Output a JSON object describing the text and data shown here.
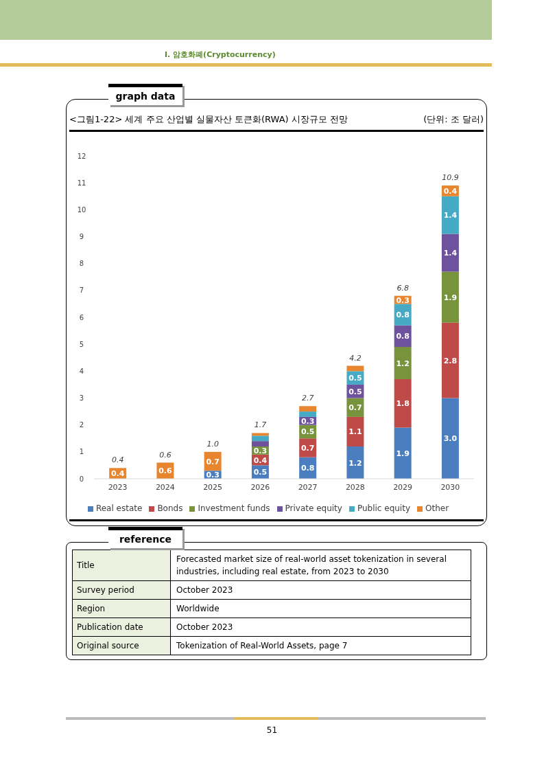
{
  "chart_data": {
    "type": "bar",
    "title": "<그림1-22> 세계 주요 산업별 실물자산 토큰화(RWA) 시장규모 전망",
    "subtitle": "(단위: 조 달러)",
    "categories": [
      "2023",
      "2024",
      "2025",
      "2026",
      "2027",
      "2028",
      "2029",
      "2030"
    ],
    "series": [
      {
        "name": "Real estate",
        "color": "#4a7ebf",
        "values": [
          null,
          null,
          0.3,
          0.5,
          0.8,
          1.2,
          1.9,
          3.0
        ],
        "value_labels": [
          null,
          null,
          "0.3",
          "0.5",
          "0.8",
          "1.2",
          "1.9",
          "3.0"
        ]
      },
      {
        "name": "Bonds",
        "color": "#be4b48",
        "values": [
          null,
          null,
          null,
          0.4,
          0.7,
          1.1,
          1.8,
          2.8
        ],
        "value_labels": [
          null,
          null,
          null,
          "0.4",
          "0.7",
          "1.1",
          "1.8",
          "2.8"
        ]
      },
      {
        "name": "Investment funds",
        "color": "#77933c",
        "values": [
          null,
          null,
          null,
          0.3,
          0.5,
          0.7,
          1.2,
          1.9
        ],
        "value_labels": [
          null,
          null,
          null,
          "0.3",
          "0.5",
          "0.7",
          "1.2",
          "1.9"
        ]
      },
      {
        "name": "Private equity",
        "color": "#6f529e",
        "values": [
          null,
          null,
          null,
          0.2,
          0.3,
          0.5,
          0.8,
          1.4
        ],
        "value_labels": [
          null,
          null,
          null,
          null,
          "0.3",
          "0.5",
          "0.8",
          "1.4"
        ]
      },
      {
        "name": "Public equity",
        "color": "#46aac4",
        "values": [
          null,
          null,
          null,
          0.2,
          0.2,
          0.5,
          0.8,
          1.4
        ],
        "value_labels": [
          null,
          null,
          null,
          null,
          null,
          "0.5",
          "0.8",
          "1.4"
        ]
      },
      {
        "name": "Other",
        "color": "#e8852f",
        "values": [
          0.4,
          0.6,
          0.7,
          0.1,
          0.2,
          0.2,
          0.3,
          0.4
        ],
        "value_labels": [
          "0.4",
          "0.6",
          "0.7",
          null,
          null,
          null,
          "0.3",
          "0.4"
        ]
      }
    ],
    "stacked": true,
    "ylim": [
      0,
      12
    ],
    "yticks": [
      0,
      1,
      2,
      3,
      4,
      5,
      6,
      7,
      8,
      9,
      10,
      11,
      12
    ],
    "grid": false,
    "legend": "bottom",
    "totals": [
      "0.4",
      "0.6",
      "1.0",
      "1.7",
      "2.7",
      "4.2",
      "6.8",
      "10.9"
    ],
    "annotations": [
      "Ⅰ. 암호화폐(Cryptocurrency)",
      "graph data",
      "reference",
      "Title",
      "Forecasted market size of real-world asset tokenization in several industries, including real estate, from 2023 to 2030",
      "Survey period",
      "October 2023",
      "Region",
      "Worldwide",
      "Publication date",
      "October 2023",
      "Original source",
      "Tokenization of Real-World Assets, page 7",
      "51"
    ]
  }
}
